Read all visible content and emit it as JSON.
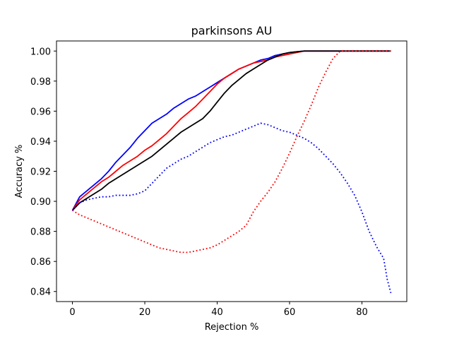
{
  "chart_data": {
    "type": "line",
    "title": "parkinsons AU",
    "xlabel": "Rejection %",
    "ylabel": "Accuracy %",
    "xlim": [
      -4.4,
      92.4
    ],
    "ylim": [
      0.8333,
      1.0067
    ],
    "xticks": [
      0,
      20,
      40,
      60,
      80
    ],
    "yticks": [
      0.84,
      0.86,
      0.88,
      0.9,
      0.92,
      0.94,
      0.96,
      0.98,
      1.0
    ],
    "ytick_labels": [
      "0.84",
      "0.86",
      "0.88",
      "0.90",
      "0.92",
      "0.94",
      "0.96",
      "0.98",
      "1.00"
    ],
    "grid": false,
    "legend": "none",
    "series": [
      {
        "color": "#0000ff",
        "style": "solid",
        "x": [
          0,
          2,
          4,
          6,
          8,
          10,
          12,
          14,
          16,
          18,
          20,
          22,
          24,
          26,
          28,
          30,
          32,
          34,
          36,
          38,
          40,
          42,
          44,
          46,
          48,
          50,
          52,
          54,
          56,
          58,
          60,
          62,
          64,
          66,
          68,
          70,
          72,
          74,
          76,
          78,
          80,
          82,
          84,
          86,
          88
        ],
        "y": [
          0.894,
          0.903,
          0.907,
          0.911,
          0.915,
          0.92,
          0.926,
          0.931,
          0.936,
          0.942,
          0.947,
          0.952,
          0.955,
          0.958,
          0.962,
          0.965,
          0.968,
          0.97,
          0.973,
          0.976,
          0.979,
          0.982,
          0.985,
          0.988,
          0.99,
          0.992,
          0.994,
          0.995,
          0.997,
          0.998,
          0.999,
          0.9995,
          1.0,
          1.0,
          1.0,
          1.0,
          1.0,
          1.0,
          1.0,
          1.0,
          1.0,
          1.0,
          1.0,
          1.0,
          1.0
        ]
      },
      {
        "color": "#ff0000",
        "style": "solid",
        "x": [
          0,
          2,
          4,
          6,
          8,
          10,
          12,
          14,
          16,
          18,
          20,
          22,
          24,
          26,
          28,
          30,
          32,
          34,
          36,
          38,
          40,
          42,
          44,
          46,
          48,
          50,
          52,
          54,
          56,
          58,
          60,
          62,
          64,
          66,
          68,
          70,
          72,
          74,
          76,
          78,
          80,
          82,
          84,
          86,
          88
        ],
        "y": [
          0.894,
          0.901,
          0.905,
          0.909,
          0.913,
          0.916,
          0.92,
          0.924,
          0.927,
          0.93,
          0.934,
          0.937,
          0.941,
          0.945,
          0.95,
          0.955,
          0.959,
          0.963,
          0.968,
          0.973,
          0.978,
          0.982,
          0.985,
          0.988,
          0.99,
          0.992,
          0.993,
          0.994,
          0.996,
          0.997,
          0.998,
          0.999,
          1.0,
          1.0,
          1.0,
          1.0,
          1.0,
          1.0,
          1.0,
          1.0,
          1.0,
          1.0,
          1.0,
          1.0,
          1.0
        ]
      },
      {
        "color": "#000000",
        "style": "solid",
        "x": [
          0,
          2,
          4,
          6,
          8,
          10,
          12,
          14,
          16,
          18,
          20,
          22,
          24,
          26,
          28,
          30,
          32,
          34,
          36,
          38,
          40,
          42,
          44,
          46,
          48,
          50,
          52,
          54,
          56,
          58,
          60,
          62,
          64,
          66,
          68,
          70,
          72,
          74,
          76,
          78,
          80,
          82,
          84,
          86,
          88
        ],
        "y": [
          0.894,
          0.899,
          0.902,
          0.905,
          0.908,
          0.912,
          0.915,
          0.918,
          0.921,
          0.924,
          0.927,
          0.93,
          0.934,
          0.938,
          0.942,
          0.946,
          0.949,
          0.952,
          0.955,
          0.96,
          0.966,
          0.972,
          0.977,
          0.981,
          0.985,
          0.988,
          0.991,
          0.994,
          0.996,
          0.998,
          0.999,
          0.9995,
          1.0,
          1.0,
          1.0,
          1.0,
          1.0,
          1.0,
          1.0,
          1.0,
          1.0,
          1.0,
          1.0,
          1.0,
          1.0
        ]
      },
      {
        "color": "#ff0000",
        "style": "dotted",
        "x": [
          0,
          2,
          4,
          6,
          8,
          10,
          12,
          14,
          16,
          18,
          20,
          22,
          24,
          26,
          28,
          30,
          32,
          34,
          36,
          38,
          40,
          42,
          44,
          46,
          48,
          50,
          52,
          54,
          56,
          58,
          60,
          62,
          64,
          66,
          68,
          70,
          72,
          74,
          76,
          78,
          80,
          82,
          84,
          86,
          88
        ],
        "y": [
          0.894,
          0.891,
          0.889,
          0.887,
          0.885,
          0.883,
          0.881,
          0.879,
          0.877,
          0.875,
          0.873,
          0.871,
          0.869,
          0.868,
          0.867,
          0.866,
          0.866,
          0.867,
          0.868,
          0.869,
          0.871,
          0.874,
          0.877,
          0.88,
          0.884,
          0.893,
          0.9,
          0.906,
          0.913,
          0.922,
          0.932,
          0.943,
          0.953,
          0.964,
          0.976,
          0.986,
          0.995,
          1.0,
          1.0,
          1.0,
          1.0,
          1.0,
          1.0,
          1.0,
          1.0
        ]
      },
      {
        "color": "#0000ff",
        "style": "dotted",
        "x": [
          0,
          2,
          4,
          6,
          8,
          10,
          12,
          14,
          16,
          18,
          20,
          22,
          24,
          26,
          28,
          30,
          32,
          34,
          36,
          38,
          40,
          42,
          44,
          46,
          48,
          50,
          52,
          54,
          56,
          58,
          60,
          62,
          64,
          66,
          68,
          70,
          72,
          74,
          76,
          78,
          80,
          82,
          84,
          86,
          87,
          88
        ],
        "y": [
          0.894,
          0.899,
          0.901,
          0.902,
          0.903,
          0.903,
          0.904,
          0.904,
          0.904,
          0.905,
          0.907,
          0.912,
          0.917,
          0.922,
          0.925,
          0.928,
          0.93,
          0.933,
          0.936,
          0.939,
          0.941,
          0.943,
          0.944,
          0.946,
          0.948,
          0.95,
          0.952,
          0.951,
          0.949,
          0.947,
          0.946,
          0.944,
          0.942,
          0.939,
          0.935,
          0.93,
          0.925,
          0.919,
          0.912,
          0.904,
          0.893,
          0.88,
          0.87,
          0.862,
          0.848,
          0.839
        ]
      }
    ]
  }
}
